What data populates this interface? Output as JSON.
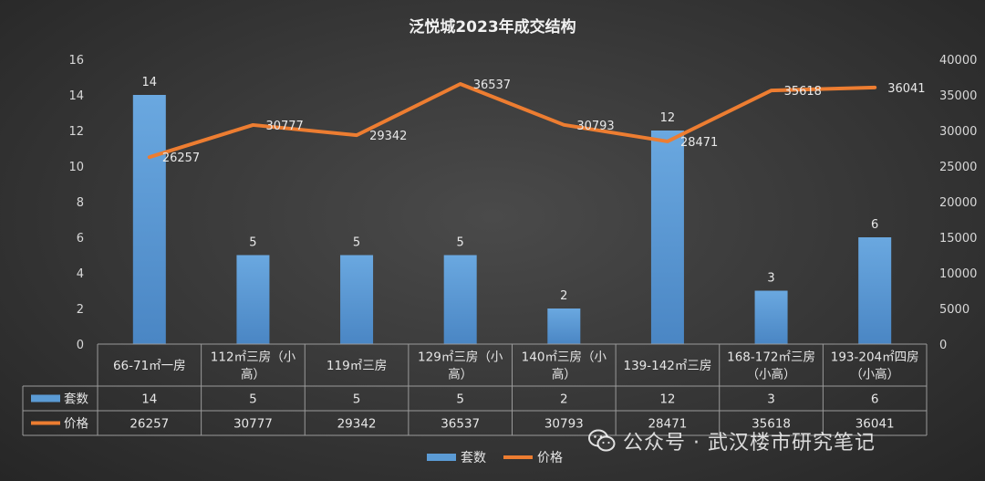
{
  "chart_data": {
    "type": "bar+line",
    "title": "泛悦城2023年成交结构",
    "categories": [
      [
        "66-71㎡一房"
      ],
      [
        "112㎡三房（小",
        "高）"
      ],
      [
        "119㎡三房"
      ],
      [
        "129㎡三房（小",
        "高）"
      ],
      [
        "140㎡三房（小",
        "高）"
      ],
      [
        "139-142㎡三房"
      ],
      [
        "168-172㎡三房",
        "（小高）"
      ],
      [
        "193-204㎡四房",
        "（小高）"
      ]
    ],
    "series": [
      {
        "name": "套数",
        "type": "bar",
        "axis": "left",
        "color": "#5b9bd5",
        "values": [
          14,
          5,
          5,
          5,
          2,
          12,
          3,
          6
        ]
      },
      {
        "name": "价格",
        "type": "line",
        "axis": "right",
        "color": "#ed7d31",
        "values": [
          26257,
          30777,
          29342,
          36537,
          30793,
          28471,
          35618,
          36041
        ]
      }
    ],
    "y_left": {
      "range": [
        0,
        16
      ],
      "ticks": [
        0,
        2,
        4,
        6,
        8,
        10,
        12,
        14,
        16
      ]
    },
    "y_right": {
      "range": [
        0,
        40000
      ],
      "ticks": [
        0,
        5000,
        10000,
        15000,
        20000,
        25000,
        30000,
        35000,
        40000
      ]
    },
    "grid": false,
    "data_table": true,
    "legend": "bottom"
  },
  "watermark": {
    "icon": "wechat-icon",
    "text": "公众号 · 武汉楼市研究笔记"
  }
}
